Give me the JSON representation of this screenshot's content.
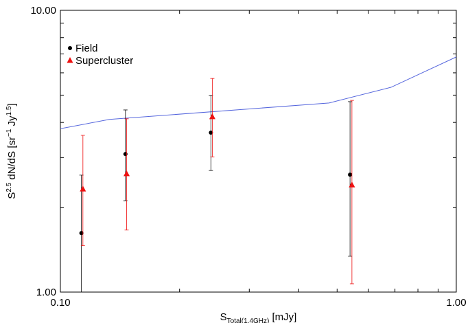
{
  "chart_data": {
    "type": "scatter",
    "xlabel_parts": [
      {
        "text": "S"
      },
      {
        "text": "Total(1.4GHz)",
        "sub": true
      },
      {
        "text": " [mJy]"
      }
    ],
    "ylabel_parts": [
      {
        "text": "S"
      },
      {
        "text": "2.5",
        "sup": true
      },
      {
        "text": " dN/dS  [sr"
      },
      {
        "text": "−1",
        "sup": true
      },
      {
        "text": " Jy"
      },
      {
        "text": "1.5",
        "sup": true
      },
      {
        "text": "]"
      }
    ],
    "xlog": true,
    "ylog": true,
    "xlim": [
      0.1,
      1.0
    ],
    "ylim": [
      1.0,
      10.0
    ],
    "xticks": [
      {
        "value": 0.1,
        "label": "0.10"
      },
      {
        "value": 1.0,
        "label": "1.00"
      }
    ],
    "yticks": [
      {
        "value": 1.0,
        "label": "1.00"
      },
      {
        "value": 10.0,
        "label": "10.00"
      }
    ],
    "xminor": [
      0.2,
      0.3,
      0.4,
      0.5,
      0.6,
      0.7,
      0.8,
      0.9
    ],
    "yminor": [
      2,
      3,
      4,
      5,
      6,
      7,
      8,
      9
    ],
    "legend": "upper-left",
    "series": [
      {
        "name": "Field",
        "color": "#000000",
        "marker": "circle",
        "x": [
          0.113,
          0.146,
          0.24,
          0.539
        ],
        "y": [
          1.62,
          3.09,
          3.68,
          2.61
        ],
        "err_low": [
          0.7,
          0.98,
          0.98,
          1.27
        ],
        "err_high": [
          0.98,
          1.34,
          1.31,
          2.13
        ]
      },
      {
        "name": "Supercluster",
        "color": "#ee1111",
        "marker": "triangle",
        "x": [
          0.114,
          0.147,
          0.242,
          0.545
        ],
        "y": [
          2.32,
          2.63,
          4.19,
          2.4
        ],
        "err_low": [
          0.86,
          0.97,
          1.17,
          1.33
        ],
        "err_high": [
          1.28,
          1.49,
          1.54,
          2.39
        ]
      }
    ],
    "model": {
      "color": "#5566dd",
      "x": [
        0.1,
        0.133,
        0.477,
        0.684,
        1.0
      ],
      "y": [
        3.8,
        4.1,
        4.69,
        5.33,
        6.83
      ]
    }
  }
}
